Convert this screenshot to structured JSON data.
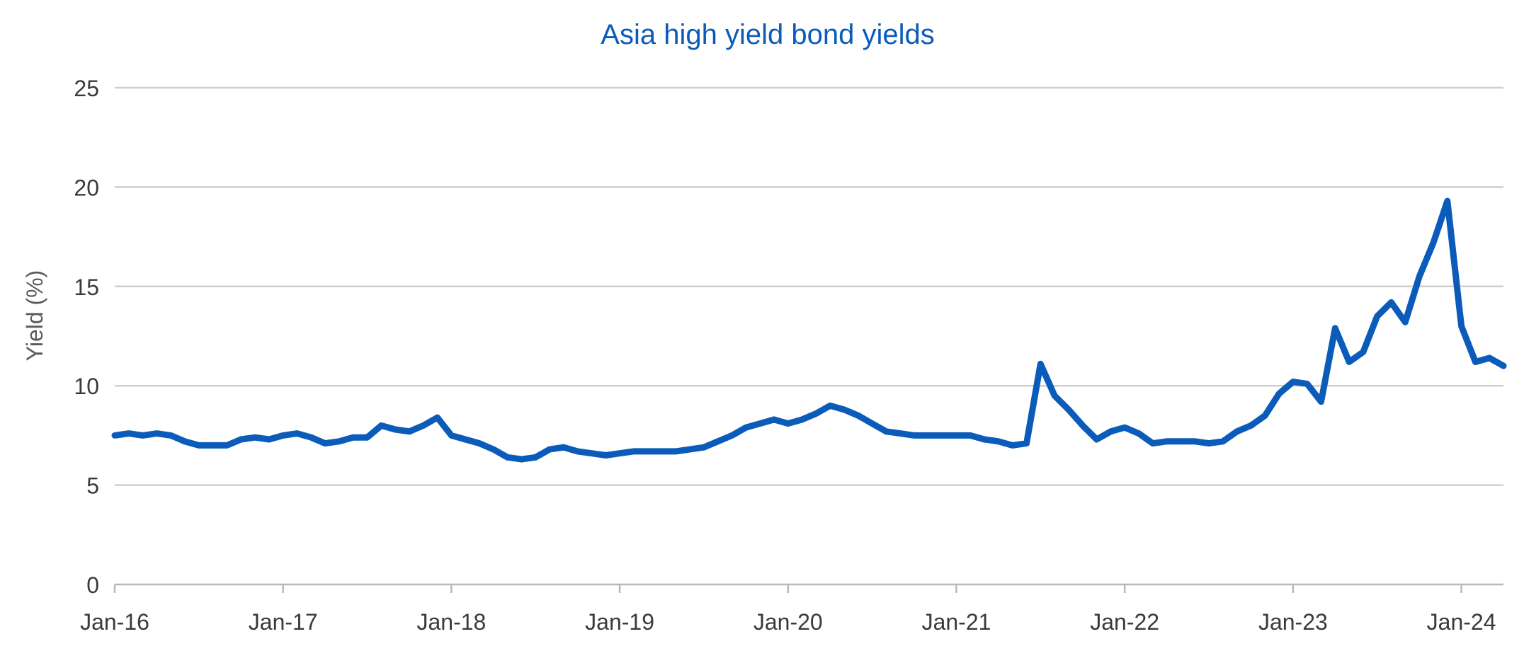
{
  "chart_data": {
    "type": "line",
    "title": "Asia high yield bond yields",
    "xlabel": "",
    "ylabel": "Yield (%)",
    "ylim": [
      0,
      25
    ],
    "yticks": [
      0,
      5,
      10,
      15,
      20,
      25
    ],
    "xlim": [
      "2016-01",
      "2024-04"
    ],
    "xticks": [
      {
        "date": "2016-01",
        "label": "Jan-16"
      },
      {
        "date": "2017-01",
        "label": "Jan-17"
      },
      {
        "date": "2018-01",
        "label": "Jan-18"
      },
      {
        "date": "2019-01",
        "label": "Jan-19"
      },
      {
        "date": "2020-01",
        "label": "Jan-20"
      },
      {
        "date": "2021-01",
        "label": "Jan-21"
      },
      {
        "date": "2022-01",
        "label": "Jan-22"
      },
      {
        "date": "2023-01",
        "label": "Jan-23"
      },
      {
        "date": "2024-01",
        "label": "Jan-24"
      }
    ],
    "grid": "horizontal",
    "legend": "none",
    "series": [
      {
        "color": "#0b5cba",
        "points": [
          [
            "2016-01",
            7.5
          ],
          [
            "2016-02",
            7.6
          ],
          [
            "2016-03",
            7.5
          ],
          [
            "2016-04",
            7.6
          ],
          [
            "2016-05",
            7.5
          ],
          [
            "2016-06",
            7.2
          ],
          [
            "2016-07",
            7.0
          ],
          [
            "2016-08",
            7.0
          ],
          [
            "2016-09",
            7.0
          ],
          [
            "2016-10",
            7.3
          ],
          [
            "2016-11",
            7.4
          ],
          [
            "2016-12",
            7.3
          ],
          [
            "2017-01",
            7.5
          ],
          [
            "2017-02",
            7.6
          ],
          [
            "2017-03",
            7.4
          ],
          [
            "2017-04",
            7.1
          ],
          [
            "2017-05",
            7.2
          ],
          [
            "2017-06",
            7.4
          ],
          [
            "2017-07",
            7.4
          ],
          [
            "2017-08",
            8.0
          ],
          [
            "2017-09",
            7.8
          ],
          [
            "2017-10",
            7.7
          ],
          [
            "2017-11",
            8.0
          ],
          [
            "2017-12",
            8.4
          ],
          [
            "2018-01",
            7.5
          ],
          [
            "2018-02",
            7.3
          ],
          [
            "2018-03",
            7.1
          ],
          [
            "2018-04",
            6.8
          ],
          [
            "2018-05",
            6.4
          ],
          [
            "2018-06",
            6.3
          ],
          [
            "2018-07",
            6.4
          ],
          [
            "2018-08",
            6.8
          ],
          [
            "2018-09",
            6.9
          ],
          [
            "2018-10",
            6.7
          ],
          [
            "2018-11",
            6.6
          ],
          [
            "2018-12",
            6.5
          ],
          [
            "2019-01",
            6.6
          ],
          [
            "2019-02",
            6.7
          ],
          [
            "2019-03",
            6.7
          ],
          [
            "2019-04",
            6.7
          ],
          [
            "2019-05",
            6.7
          ],
          [
            "2019-06",
            6.8
          ],
          [
            "2019-07",
            6.9
          ],
          [
            "2019-08",
            7.2
          ],
          [
            "2019-09",
            7.5
          ],
          [
            "2019-10",
            7.9
          ],
          [
            "2019-11",
            8.1
          ],
          [
            "2019-12",
            8.3
          ],
          [
            "2020-01",
            8.1
          ],
          [
            "2020-02",
            8.3
          ],
          [
            "2020-03",
            8.6
          ],
          [
            "2020-04",
            9.0
          ],
          [
            "2020-05",
            8.8
          ],
          [
            "2020-06",
            8.5
          ],
          [
            "2020-07",
            8.1
          ],
          [
            "2020-08",
            7.7
          ],
          [
            "2020-09",
            7.6
          ],
          [
            "2020-10",
            7.5
          ],
          [
            "2020-11",
            7.5
          ],
          [
            "2020-12",
            7.5
          ],
          [
            "2021-01",
            7.5
          ],
          [
            "2021-02",
            7.5
          ],
          [
            "2021-03",
            7.3
          ],
          [
            "2021-04",
            7.2
          ],
          [
            "2021-05",
            7.0
          ],
          [
            "2021-06",
            7.1
          ],
          [
            "2021-07",
            11.1
          ],
          [
            "2021-08",
            9.5
          ],
          [
            "2021-09",
            8.8
          ],
          [
            "2021-10",
            8.0
          ],
          [
            "2021-11",
            7.3
          ],
          [
            "2021-12",
            7.7
          ],
          [
            "2022-01",
            7.9
          ],
          [
            "2022-02",
            7.6
          ],
          [
            "2022-03",
            7.1
          ],
          [
            "2022-04",
            7.2
          ],
          [
            "2022-05",
            7.2
          ],
          [
            "2022-06",
            7.2
          ],
          [
            "2022-07",
            7.1
          ],
          [
            "2022-08",
            7.2
          ],
          [
            "2022-09",
            7.7
          ],
          [
            "2022-10",
            8.0
          ],
          [
            "2022-11",
            8.5
          ],
          [
            "2022-12",
            9.6
          ],
          [
            "2023-01",
            10.2
          ],
          [
            "2023-02",
            10.1
          ],
          [
            "2023-03",
            9.2
          ],
          [
            "2023-04",
            12.9
          ],
          [
            "2023-05",
            11.2
          ],
          [
            "2023-06",
            11.7
          ],
          [
            "2023-07",
            13.5
          ],
          [
            "2023-08",
            14.2
          ],
          [
            "2023-09",
            13.2
          ],
          [
            "2023-10",
            15.5
          ],
          [
            "2023-11",
            17.2
          ],
          [
            "2023-12",
            19.3
          ],
          [
            "2024-01",
            13.0
          ],
          [
            "2024-02",
            11.2
          ],
          [
            "2024-03",
            11.4
          ],
          [
            "2024-04",
            11.0
          ]
        ]
      }
    ]
  }
}
